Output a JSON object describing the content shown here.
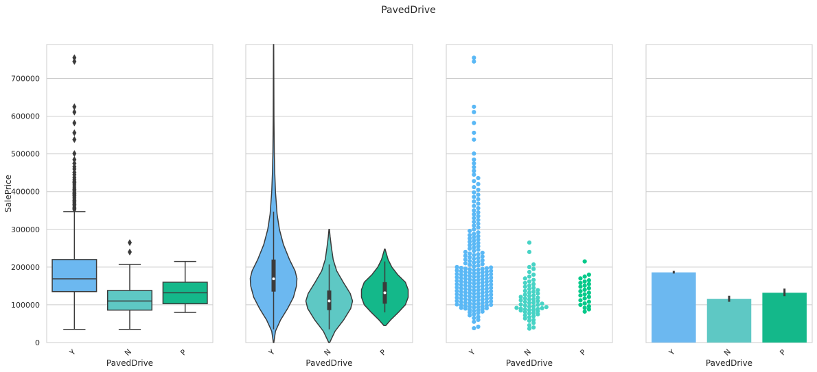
{
  "figure": {
    "title": "PavedDrive"
  },
  "colors": {
    "Y": "#6cb8f0",
    "N": "#5ec8c4",
    "P": "#14b88a",
    "swarm_Y": "#5ab8f5",
    "swarm_N": "#47d3c5",
    "swarm_P": "#06c98a",
    "grid": "#cccccc",
    "frame": "#cccccc",
    "line": "#3b3b3b"
  },
  "chart_data": [
    {
      "type": "box",
      "xlabel": "PavedDrive",
      "ylabel": "SalePrice",
      "categories": [
        "Y",
        "N",
        "P"
      ],
      "ylim": [
        0,
        790000
      ],
      "yticks": [
        "0",
        "100000",
        "200000",
        "300000",
        "400000",
        "500000",
        "600000",
        "700000"
      ],
      "grid": true,
      "boxes": [
        {
          "name": "Y",
          "whislo": 35000,
          "q1": 135000,
          "med": 169000,
          "q3": 220000,
          "whishi": 347000,
          "fliers": [
            352000,
            355000,
            358000,
            362000,
            366000,
            370000,
            373000,
            377000,
            381000,
            385000,
            389000,
            392000,
            395000,
            398000,
            402000,
            406000,
            410000,
            415000,
            420000,
            424000,
            428000,
            433000,
            438000,
            445000,
            451000,
            460000,
            466000,
            475000,
            485000,
            501000,
            538000,
            556000,
            582000,
            611000,
            625000,
            745000,
            755000
          ]
        },
        {
          "name": "N",
          "whislo": 35000,
          "q1": 86000,
          "med": 110000,
          "q3": 138000,
          "whishi": 207000,
          "fliers": [
            240000,
            265000
          ]
        },
        {
          "name": "P",
          "whislo": 80000,
          "q1": 103000,
          "med": 132000,
          "q3": 160000,
          "whishi": 215000,
          "fliers": []
        }
      ]
    },
    {
      "type": "violin",
      "xlabel": "PavedDrive",
      "categories": [
        "Y",
        "N",
        "P"
      ],
      "ylim": [
        0,
        790000
      ],
      "grid": true,
      "violins": [
        {
          "name": "Y",
          "min": 0,
          "max": 790000,
          "q1": 135000,
          "med": 169000,
          "q3": 220000,
          "whislo": 35000,
          "whishi": 347000,
          "density": [
            [
              0,
              0.01
            ],
            [
              30000,
              0.08
            ],
            [
              60000,
              0.3
            ],
            [
              90000,
              0.6
            ],
            [
              120000,
              0.85
            ],
            [
              150000,
              0.98
            ],
            [
              170000,
              1.0
            ],
            [
              190000,
              0.92
            ],
            [
              220000,
              0.68
            ],
            [
              260000,
              0.42
            ],
            [
              300000,
              0.25
            ],
            [
              340000,
              0.15
            ],
            [
              400000,
              0.08
            ],
            [
              450000,
              0.05
            ],
            [
              500000,
              0.03
            ],
            [
              600000,
              0.015
            ],
            [
              700000,
              0.01
            ],
            [
              790000,
              0.005
            ]
          ]
        },
        {
          "name": "N",
          "min": 0,
          "max": 300000,
          "q1": 86000,
          "med": 110000,
          "q3": 138000,
          "whislo": 35000,
          "whishi": 207000,
          "density": [
            [
              0,
              0.02
            ],
            [
              30000,
              0.25
            ],
            [
              60000,
              0.62
            ],
            [
              90000,
              0.92
            ],
            [
              110000,
              1.0
            ],
            [
              130000,
              0.9
            ],
            [
              160000,
              0.6
            ],
            [
              190000,
              0.32
            ],
            [
              220000,
              0.17
            ],
            [
              250000,
              0.1
            ],
            [
              280000,
              0.04
            ],
            [
              300000,
              0.01
            ]
          ]
        },
        {
          "name": "P",
          "min": 45000,
          "max": 248000,
          "q1": 103000,
          "med": 132000,
          "q3": 160000,
          "whislo": 80000,
          "whishi": 215000,
          "density": [
            [
              45000,
              0.04
            ],
            [
              60000,
              0.25
            ],
            [
              80000,
              0.58
            ],
            [
              100000,
              0.88
            ],
            [
              120000,
              1.0
            ],
            [
              140000,
              1.0
            ],
            [
              160000,
              0.88
            ],
            [
              180000,
              0.55
            ],
            [
              200000,
              0.3
            ],
            [
              220000,
              0.14
            ],
            [
              235000,
              0.07
            ],
            [
              248000,
              0.01
            ]
          ]
        }
      ]
    },
    {
      "type": "scatter",
      "subtype": "swarm",
      "xlabel": "PavedDrive",
      "categories": [
        "Y",
        "N",
        "P"
      ],
      "ylim": [
        0,
        790000
      ],
      "grid": true,
      "series": [
        {
          "name": "Y",
          "values": [
            38000,
            42000,
            55000,
            60000,
            65000,
            68000,
            72000,
            75000,
            78000,
            80000,
            82000,
            84000,
            86000,
            87000,
            89000,
            90000,
            91000,
            92000,
            93000,
            94000,
            95000,
            96000,
            97000,
            98000,
            99000,
            100000,
            101000,
            102000,
            103000,
            104000,
            105000,
            106000,
            107000,
            108000,
            109000,
            110000,
            111000,
            112000,
            113000,
            114000,
            115000,
            116000,
            117000,
            118000,
            119000,
            120000,
            121000,
            122000,
            123000,
            124000,
            125000,
            126000,
            127000,
            128000,
            129000,
            130000,
            131000,
            132000,
            133000,
            134000,
            135000,
            136000,
            137000,
            138000,
            139000,
            140000,
            141000,
            142000,
            143000,
            144000,
            145000,
            146000,
            147000,
            148000,
            149000,
            150000,
            151000,
            152000,
            153000,
            154000,
            155000,
            156000,
            157000,
            158000,
            159000,
            160000,
            161000,
            162000,
            163000,
            164000,
            165000,
            166000,
            167000,
            168000,
            169000,
            170000,
            171000,
            172000,
            173000,
            174000,
            175000,
            176000,
            177000,
            178000,
            179000,
            180000,
            181000,
            182000,
            183000,
            184000,
            185000,
            186000,
            187000,
            188000,
            189000,
            190000,
            191000,
            192000,
            193000,
            194000,
            195000,
            196000,
            197000,
            198000,
            199000,
            200000,
            202000,
            204000,
            206000,
            208000,
            210000,
            212000,
            214000,
            216000,
            218000,
            220000,
            222000,
            224000,
            226000,
            228000,
            230000,
            232000,
            234000,
            236000,
            238000,
            240000,
            243000,
            246000,
            249000,
            252000,
            255000,
            258000,
            261000,
            264000,
            267000,
            270000,
            273000,
            276000,
            279000,
            282000,
            285000,
            288000,
            292000,
            296000,
            300000,
            305000,
            310000,
            315000,
            320000,
            325000,
            330000,
            335000,
            340000,
            345000,
            350000,
            356000,
            362000,
            368000,
            374000,
            380000,
            386000,
            392000,
            398000,
            405000,
            412000,
            420000,
            428000,
            436000,
            445000,
            455000,
            465000,
            475000,
            485000,
            501000,
            538000,
            556000,
            582000,
            611000,
            625000,
            745000,
            755000
          ]
        },
        {
          "name": "N",
          "values": [
            37000,
            40000,
            46000,
            52000,
            58000,
            60000,
            64000,
            67000,
            70000,
            72000,
            75000,
            77000,
            79000,
            81000,
            83000,
            85000,
            86000,
            87000,
            88000,
            89000,
            90000,
            91000,
            92000,
            94000,
            95000,
            96000,
            98000,
            100000,
            101000,
            103000,
            105000,
            106000,
            108000,
            110000,
            112000,
            114000,
            115000,
            117000,
            119000,
            121000,
            123000,
            125000,
            127000,
            130000,
            132000,
            135000,
            137000,
            139000,
            142000,
            145000,
            148000,
            151000,
            155000,
            158000,
            162000,
            166000,
            170000,
            175000,
            180000,
            187000,
            195000,
            200000,
            207000,
            240000,
            265000
          ]
        },
        {
          "name": "P",
          "values": [
            82000,
            88000,
            92000,
            96000,
            100000,
            104000,
            108000,
            112000,
            117000,
            121000,
            125000,
            128000,
            132000,
            136000,
            140000,
            144000,
            148000,
            151000,
            155000,
            158000,
            162000,
            165000,
            170000,
            175000,
            180000,
            215000
          ]
        }
      ]
    },
    {
      "type": "bar",
      "xlabel": "PavedDrive",
      "categories": [
        "Y",
        "N",
        "P"
      ],
      "values": [
        186000,
        116000,
        132000
      ],
      "error": [
        [
          183000,
          190000
        ],
        [
          108000,
          124000
        ],
        [
          123000,
          143000
        ]
      ],
      "ylim": [
        0,
        790000
      ],
      "grid": true
    }
  ]
}
